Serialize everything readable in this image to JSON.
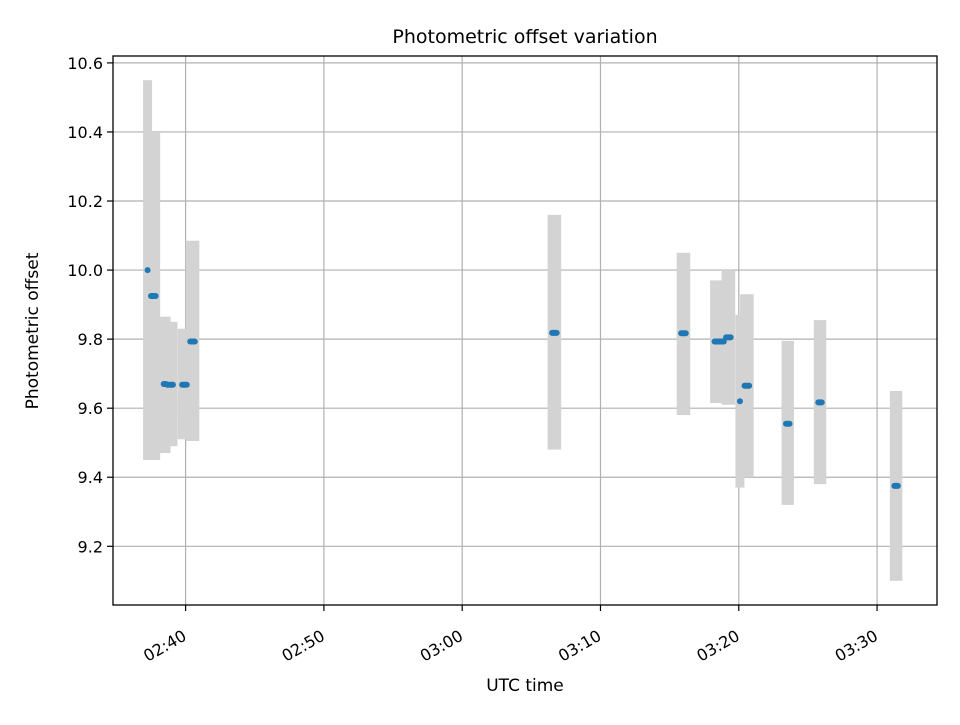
{
  "chart_data": {
    "type": "scatter",
    "title": "Photometric offset variation",
    "xlabel": "UTC time",
    "ylabel": "Photometric offset",
    "x_unit": "UTC time (HH:MM)",
    "xlim": [
      "02:34:45",
      "03:34:20"
    ],
    "ylim": [
      9.03,
      10.62
    ],
    "x_ticks": [
      "02:40",
      "02:50",
      "03:00",
      "03:10",
      "03:20",
      "03:30"
    ],
    "y_ticks": [
      "9.2",
      "9.4",
      "9.6",
      "9.8",
      "10.0",
      "10.2",
      "10.4",
      "10.6"
    ],
    "grid": true,
    "colors": {
      "point": "#1f77b4",
      "error_bar": "#d3d3d3",
      "grid": "#b0b0b0"
    },
    "points": [
      {
        "start": "02:37:15",
        "end": "02:37:15",
        "y": 10.0,
        "err_low": 9.45,
        "err_high": 10.55
      },
      {
        "start": "02:37:30",
        "end": "02:37:50",
        "y": 9.925,
        "err_low": 9.45,
        "err_high": 10.4
      },
      {
        "start": "02:38:25",
        "end": "02:38:35",
        "y": 9.67,
        "err_low": 9.47,
        "err_high": 9.865
      },
      {
        "start": "02:38:40",
        "end": "02:39:05",
        "y": 9.668,
        "err_low": 9.49,
        "err_high": 9.85
      },
      {
        "start": "02:39:45",
        "end": "02:40:05",
        "y": 9.668,
        "err_low": 9.51,
        "err_high": 9.83
      },
      {
        "start": "02:40:20",
        "end": "02:40:40",
        "y": 9.793,
        "err_low": 9.505,
        "err_high": 10.085
      },
      {
        "start": "03:06:30",
        "end": "03:06:50",
        "y": 9.818,
        "err_low": 9.48,
        "err_high": 10.16
      },
      {
        "start": "03:15:50",
        "end": "03:16:10",
        "y": 9.817,
        "err_low": 9.58,
        "err_high": 10.05
      },
      {
        "start": "03:18:15",
        "end": "03:18:55",
        "y": 9.793,
        "err_low": 9.615,
        "err_high": 9.97
      },
      {
        "start": "03:19:05",
        "end": "03:19:25",
        "y": 9.805,
        "err_low": 9.61,
        "err_high": 10.0
      },
      {
        "start": "03:20:05",
        "end": "03:20:05",
        "y": 9.62,
        "err_low": 9.37,
        "err_high": 9.87
      },
      {
        "start": "03:20:25",
        "end": "03:20:45",
        "y": 9.665,
        "err_low": 9.4,
        "err_high": 9.93
      },
      {
        "start": "03:23:25",
        "end": "03:23:40",
        "y": 9.555,
        "err_low": 9.32,
        "err_high": 9.795
      },
      {
        "start": "03:25:45",
        "end": "03:26:00",
        "y": 9.617,
        "err_low": 9.38,
        "err_high": 9.855
      },
      {
        "start": "03:31:15",
        "end": "03:31:30",
        "y": 9.375,
        "err_low": 9.1,
        "err_high": 9.65
      }
    ]
  }
}
